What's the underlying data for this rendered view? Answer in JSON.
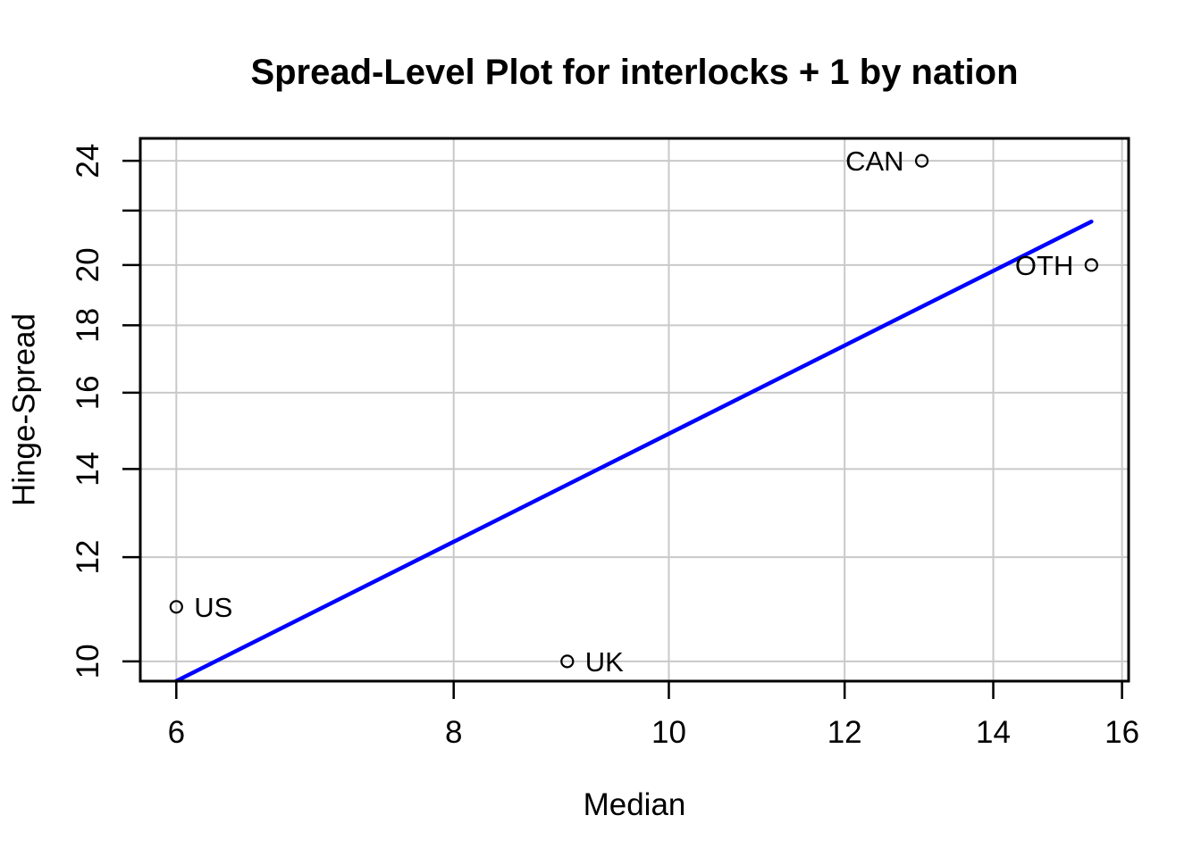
{
  "figure": {
    "background": "#ffffff",
    "border_color": "#000000",
    "grid_color": "#c9c9c9"
  },
  "chart_data": {
    "type": "scatter",
    "title": "Spread-Level Plot for interlocks + 1 by nation",
    "xlabel": "Median",
    "ylabel": "Hinge-Spread",
    "x_scale": "log10",
    "y_scale": "log10",
    "xlim": [
      5.78,
      16.11
    ],
    "ylim": [
      9.66,
      24.96
    ],
    "grid": true,
    "legend": "none",
    "x_ticks": [
      {
        "value": 6,
        "label": "6"
      },
      {
        "value": 8,
        "label": "8"
      },
      {
        "value": 10,
        "label": "10"
      },
      {
        "value": 12,
        "label": "12"
      },
      {
        "value": 14,
        "label": "14"
      },
      {
        "value": 16,
        "label": "16"
      }
    ],
    "y_ticks": [
      {
        "value": 10,
        "label": "10"
      },
      {
        "value": 12,
        "label": "12"
      },
      {
        "value": 14,
        "label": "14"
      },
      {
        "value": 16,
        "label": "16"
      },
      {
        "value": 18,
        "label": "18"
      },
      {
        "value": 20,
        "label": "20"
      },
      {
        "value": 22,
        "label": ""
      },
      {
        "value": 24,
        "label": "24"
      }
    ],
    "points": [
      {
        "label": "US",
        "x": 6,
        "y": 11,
        "label_side": "right"
      },
      {
        "label": "UK",
        "x": 9,
        "y": 10,
        "label_side": "right"
      },
      {
        "label": "CAN",
        "x": 13,
        "y": 24,
        "label_side": "left"
      },
      {
        "label": "OTH",
        "x": 15.5,
        "y": 20,
        "label_side": "left"
      }
    ],
    "point_color": "#000000",
    "fit_line": {
      "color": "#0000ff",
      "log10_intercept": 0.3263,
      "log10_slope": 0.8466,
      "x_start": 6,
      "x_end": 15.5
    }
  }
}
